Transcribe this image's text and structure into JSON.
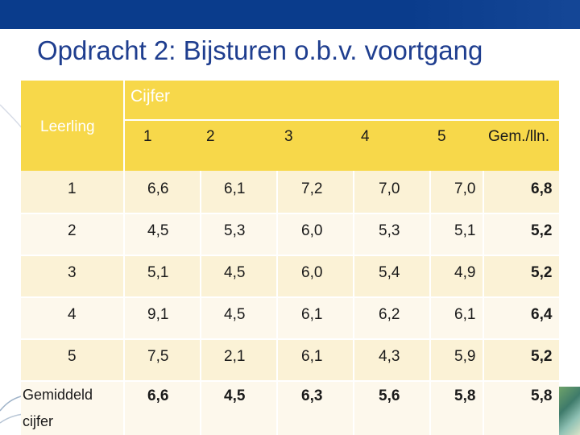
{
  "slide": {
    "title": "Opdracht 2: Bijsturen o.b.v. voortgang"
  },
  "table": {
    "header": {
      "leerling": "Leerling",
      "cijfer": "Cijfer",
      "columns": [
        "1",
        "2",
        "3",
        "4",
        "5",
        "Gem./lln."
      ]
    },
    "rows": [
      {
        "student": "1",
        "grades": [
          "6,6",
          "6,1",
          "7,2",
          "7,0",
          "7,0"
        ],
        "avg": "6,8"
      },
      {
        "student": "2",
        "grades": [
          "4,5",
          "5,3",
          "6,0",
          "5,3",
          "5,1"
        ],
        "avg": "5,2"
      },
      {
        "student": "3",
        "grades": [
          "5,1",
          "4,5",
          "6,0",
          "5,4",
          "4,9"
        ],
        "avg": "5,2"
      },
      {
        "student": "4",
        "grades": [
          "9,1",
          "4,5",
          "6,1",
          "6,2",
          "6,1"
        ],
        "avg": "6,4"
      },
      {
        "student": "5",
        "grades": [
          "7,5",
          "2,1",
          "6,1",
          "4,3",
          "5,9"
        ],
        "avg": "5,2"
      }
    ],
    "footer": {
      "label_line1": "Gemiddeld",
      "label_line2": "cijfer",
      "values": [
        "6,6",
        "4,5",
        "6,3",
        "5,6",
        "5,8",
        "5,8"
      ]
    }
  },
  "colors": {
    "title": "#1f3e8f",
    "top_bar": "#0a3c8c",
    "header_fill": "#f7d84a",
    "row_fill_light": "#fdf8ec",
    "row_fill_tint": "#fbf2d6"
  }
}
